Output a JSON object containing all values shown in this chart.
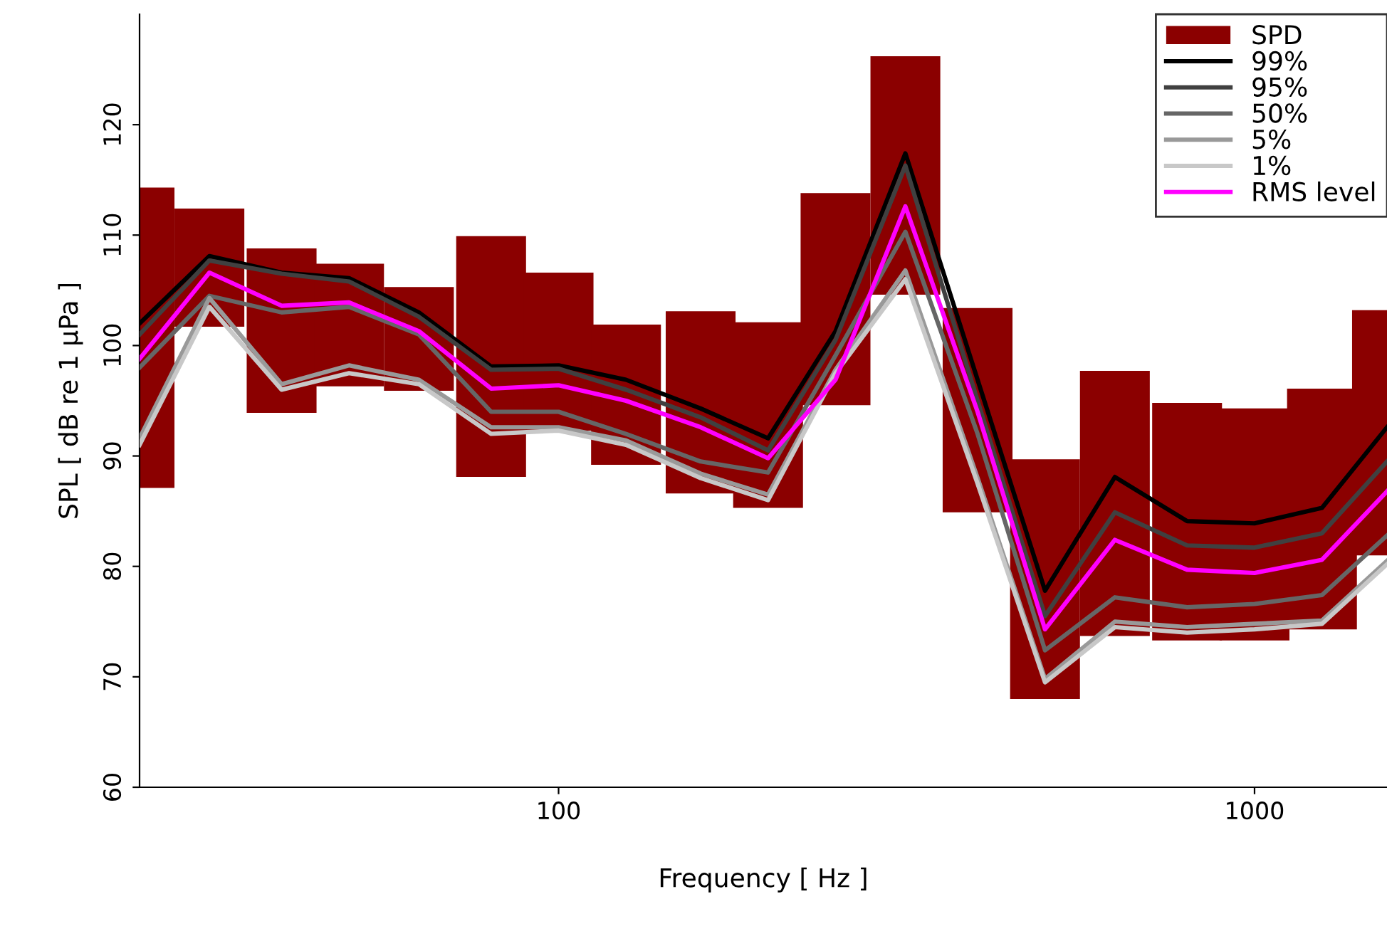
{
  "chart_data": {
    "type": "line",
    "xlabel": "Frequency [ Hz ]",
    "ylabel": "SPL [ dB re 1 µPa ]",
    "x": [
      25,
      31.5,
      40,
      50,
      63,
      80,
      100,
      125,
      160,
      200,
      250,
      315,
      400,
      500,
      630,
      800,
      1000,
      1250,
      1550
    ],
    "log": "x",
    "xlim": [
      25,
      1550
    ],
    "xticks": [
      100,
      1000
    ],
    "ylim": [
      60,
      130
    ],
    "yticks": [
      60,
      70,
      80,
      90,
      100,
      110,
      120
    ],
    "grid": false,
    "legend": "top right",
    "marker": "none",
    "line_style": "solid",
    "series": [
      {
        "name": "SPD",
        "type": "bar",
        "color": "#8b0000",
        "base": [
          87.1,
          101.7,
          93.9,
          96.3,
          95.9,
          88.1,
          92.3,
          89.2,
          86.6,
          85.3,
          94.6,
          104.6,
          84.9,
          68,
          73.7,
          73.3,
          73.3,
          74.3,
          81
        ],
        "values": [
          27.2,
          10.7,
          14.9,
          11.1,
          9.4,
          21.8,
          14.3,
          12.7,
          16.5,
          16.8,
          19.2,
          21.6,
          18.5,
          21.7,
          24,
          21.5,
          21,
          21.8,
          22.2
        ]
      },
      {
        "name": "99%",
        "color": "#000000",
        "values": [
          102,
          108.1,
          106.6,
          106.1,
          103,
          98.1,
          98.2,
          96.9,
          94.3,
          91.6,
          101.3,
          117.4,
          96.9,
          77.8,
          88.1,
          84.1,
          83.9,
          85.3,
          92.6
        ]
      },
      {
        "name": "95%",
        "color": "#404040",
        "values": [
          101,
          107.7,
          106.5,
          105.8,
          102.6,
          97.8,
          97.9,
          96,
          93.5,
          90.5,
          100.5,
          116.3,
          95,
          75.5,
          84.9,
          81.9,
          81.7,
          83,
          89.5
        ]
      },
      {
        "name": "50%",
        "color": "#666666",
        "values": [
          98,
          104.5,
          103,
          103.5,
          101,
          94,
          94,
          92,
          89.5,
          88.5,
          99.1,
          110.3,
          92,
          72.4,
          77.2,
          76.3,
          76.6,
          77.4,
          82.8
        ]
      },
      {
        "name": "5%",
        "color": "#999999",
        "values": [
          91.6,
          104.3,
          96.5,
          98.2,
          96.9,
          92.6,
          92.6,
          91.4,
          88.4,
          86.5,
          97.8,
          106.8,
          88,
          69.8,
          75,
          74.5,
          74.8,
          75.1,
          80.5
        ]
      },
      {
        "name": "1%",
        "color": "#c8c8c8",
        "values": [
          91,
          103.5,
          96,
          97.5,
          96.5,
          92,
          92.3,
          91,
          88,
          86,
          97.5,
          106,
          87.5,
          69.5,
          74.5,
          74,
          74.3,
          74.8,
          80.2
        ]
      },
      {
        "name": "RMS level",
        "color": "#ff00ff",
        "values": [
          98.8,
          106.6,
          103.6,
          103.9,
          101.3,
          96.1,
          96.4,
          95,
          92.6,
          89.8,
          96.9,
          112.6,
          94,
          74.3,
          82.4,
          79.7,
          79.4,
          80.6,
          86.8
        ]
      }
    ]
  }
}
